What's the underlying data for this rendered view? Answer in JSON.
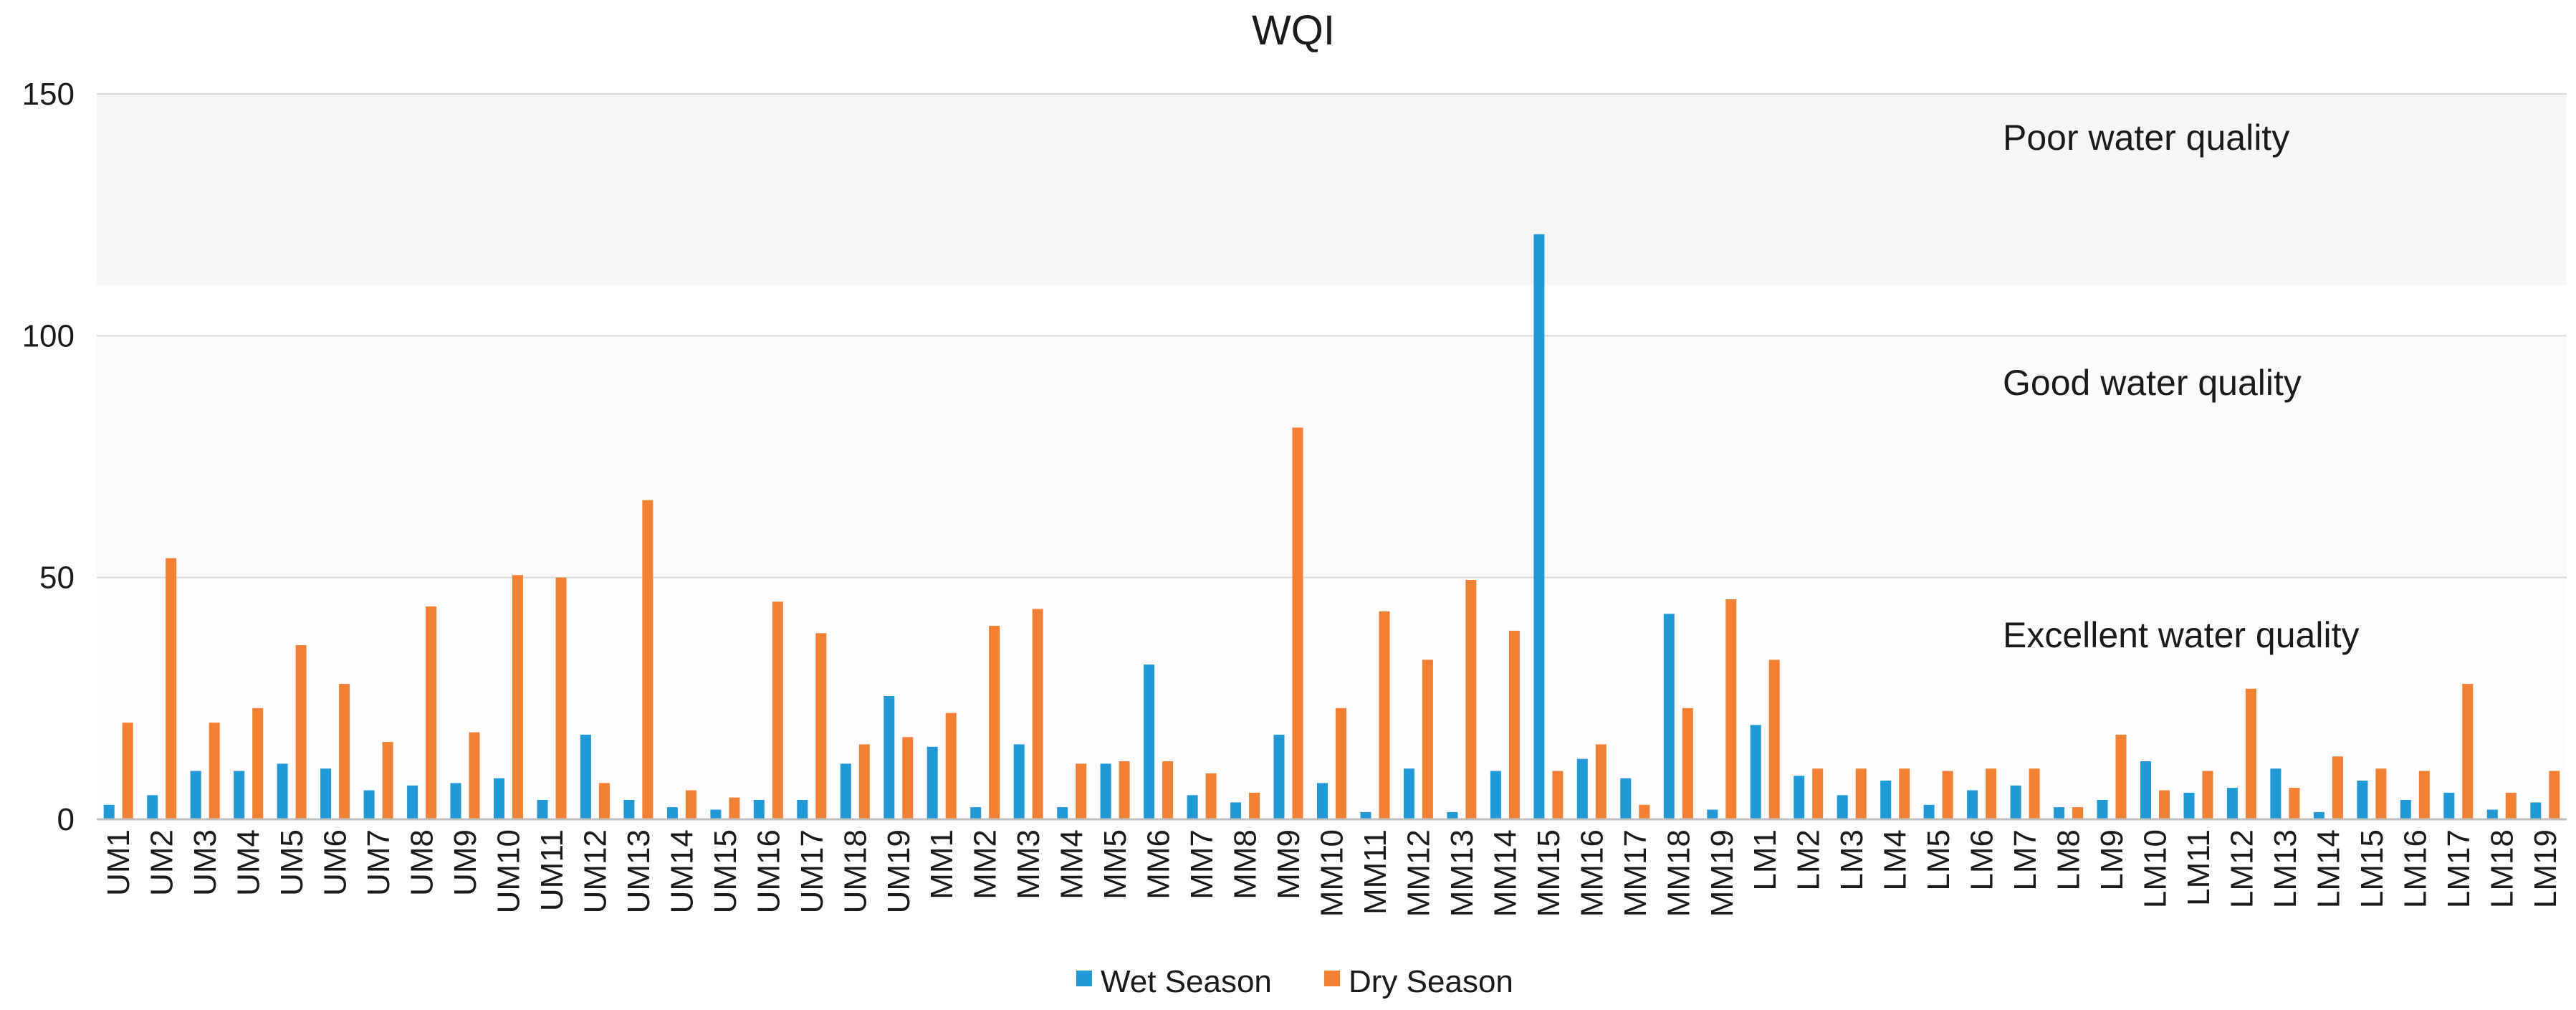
{
  "chart_data": {
    "type": "bar",
    "title": "WQI",
    "xlabel": "",
    "ylabel": "",
    "ylim": [
      0,
      150
    ],
    "yticks": [
      0,
      50,
      100,
      150
    ],
    "grid": true,
    "legend_position": "bottom",
    "categories": [
      "UM1",
      "UM2",
      "UM3",
      "UM4",
      "UM5",
      "UM6",
      "UM7",
      "UM8",
      "UM9",
      "UM10",
      "UM11",
      "UM12",
      "UM13",
      "UM14",
      "UM15",
      "UM16",
      "UM17",
      "UM18",
      "UM19",
      "MM1",
      "MM2",
      "MM3",
      "MM4",
      "MM5",
      "MM6",
      "MM7",
      "MM8",
      "MM9",
      "MM10",
      "MM11",
      "MM12",
      "MM13",
      "MM14",
      "MM15",
      "MM16",
      "MM17",
      "MM18",
      "MM19",
      "LM1",
      "LM2",
      "LM3",
      "LM4",
      "LM5",
      "LM6",
      "LM7",
      "LM8",
      "LM9",
      "LM10",
      "LM11",
      "LM12",
      "LM13",
      "LM14",
      "LM15",
      "LM16",
      "LM17",
      "LM18",
      "LM19"
    ],
    "series": [
      {
        "name": "Wet Season",
        "color": "#1f9ad6",
        "values": [
          3,
          5,
          10,
          10,
          11.5,
          10.5,
          6,
          7,
          7.5,
          8.5,
          4,
          17.5,
          4,
          2.5,
          2,
          4,
          4,
          11.5,
          25.5,
          15,
          2.5,
          15.5,
          2.5,
          11.5,
          32,
          5,
          3.5,
          17.5,
          7.5,
          1.5,
          10.5,
          1.5,
          10,
          121,
          12.5,
          8.5,
          42.5,
          2,
          19.5,
          9,
          5,
          8,
          3,
          6,
          7,
          2.5,
          4,
          12,
          5.5,
          6.5,
          10.5,
          1.5,
          8,
          4,
          5.5,
          2,
          3.5
        ]
      },
      {
        "name": "Dry Season",
        "color": "#f28032",
        "values": [
          20,
          54,
          20,
          23,
          36,
          28,
          16,
          44,
          18,
          50.5,
          50,
          7.5,
          66,
          6,
          4.5,
          45,
          38.5,
          15.5,
          17,
          22,
          40,
          43.5,
          11.5,
          12,
          12,
          9.5,
          5.5,
          81,
          23,
          43,
          33,
          49.5,
          39,
          10,
          15.5,
          3,
          23,
          45.5,
          33,
          10.5,
          10.5,
          10.5,
          10,
          10.5,
          10.5,
          2.5,
          17.5,
          6,
          10,
          27,
          6.5,
          13,
          10.5,
          10,
          28,
          5.5,
          10
        ]
      }
    ],
    "annotations": [
      "Poor water quality",
      "Good water quality",
      "Excellent water quality"
    ]
  }
}
